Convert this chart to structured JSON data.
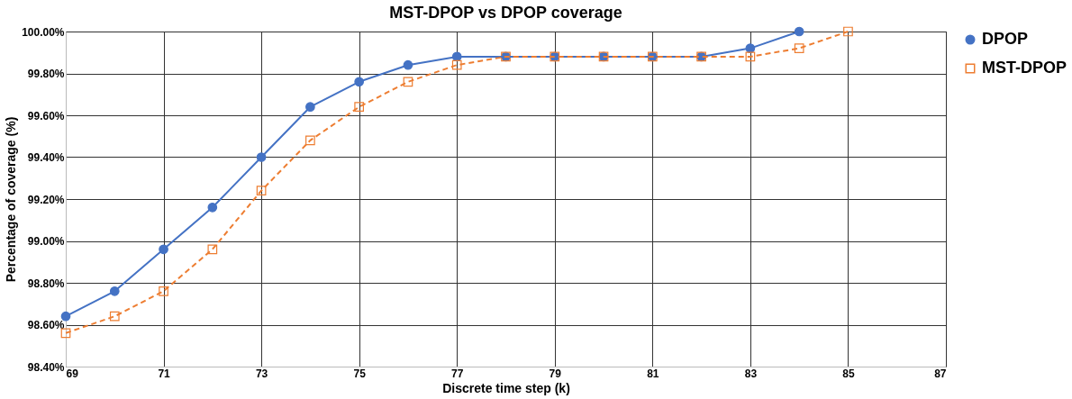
{
  "chart_data": {
    "type": "line",
    "title": "MST-DPOP vs DPOP coverage",
    "xlabel": "Discrete time step (k)",
    "ylabel": "Percentage of coverage (%)",
    "x": [
      69,
      70,
      71,
      72,
      73,
      74,
      75,
      76,
      77,
      78,
      79,
      80,
      81,
      82,
      83,
      84,
      85
    ],
    "series": [
      {
        "name": "DPOP",
        "color": "#4472c4",
        "marker": "circle",
        "line_style": "solid",
        "values": [
          98.64,
          98.76,
          98.96,
          99.16,
          99.4,
          99.64,
          99.76,
          99.84,
          99.88,
          99.88,
          99.88,
          99.88,
          99.88,
          99.88,
          99.92,
          100.0,
          null
        ]
      },
      {
        "name": "MST-DPOP",
        "color": "#ed7d31",
        "marker": "square",
        "line_style": "dashed",
        "values": [
          98.56,
          98.64,
          98.76,
          98.96,
          99.24,
          99.48,
          99.64,
          99.76,
          99.84,
          99.88,
          99.88,
          99.88,
          99.88,
          99.88,
          99.88,
          99.92,
          100.0
        ]
      }
    ],
    "xlim": [
      69,
      87
    ],
    "xticks": [
      69,
      71,
      73,
      75,
      77,
      79,
      81,
      83,
      85,
      87
    ],
    "ylim": [
      98.4,
      100.0
    ],
    "yticks": [
      {
        "value": 98.4,
        "label": "98.40%"
      },
      {
        "value": 98.6,
        "label": "98.60%"
      },
      {
        "value": 98.8,
        "label": "98.80%"
      },
      {
        "value": 99.0,
        "label": "99.00%"
      },
      {
        "value": 99.2,
        "label": "99.20%"
      },
      {
        "value": 99.4,
        "label": "99.40%"
      },
      {
        "value": 99.6,
        "label": "99.60%"
      },
      {
        "value": 99.8,
        "label": "99.80%"
      },
      {
        "value": 100.0,
        "label": "100.00%"
      }
    ],
    "grid": true,
    "legend": "right"
  }
}
